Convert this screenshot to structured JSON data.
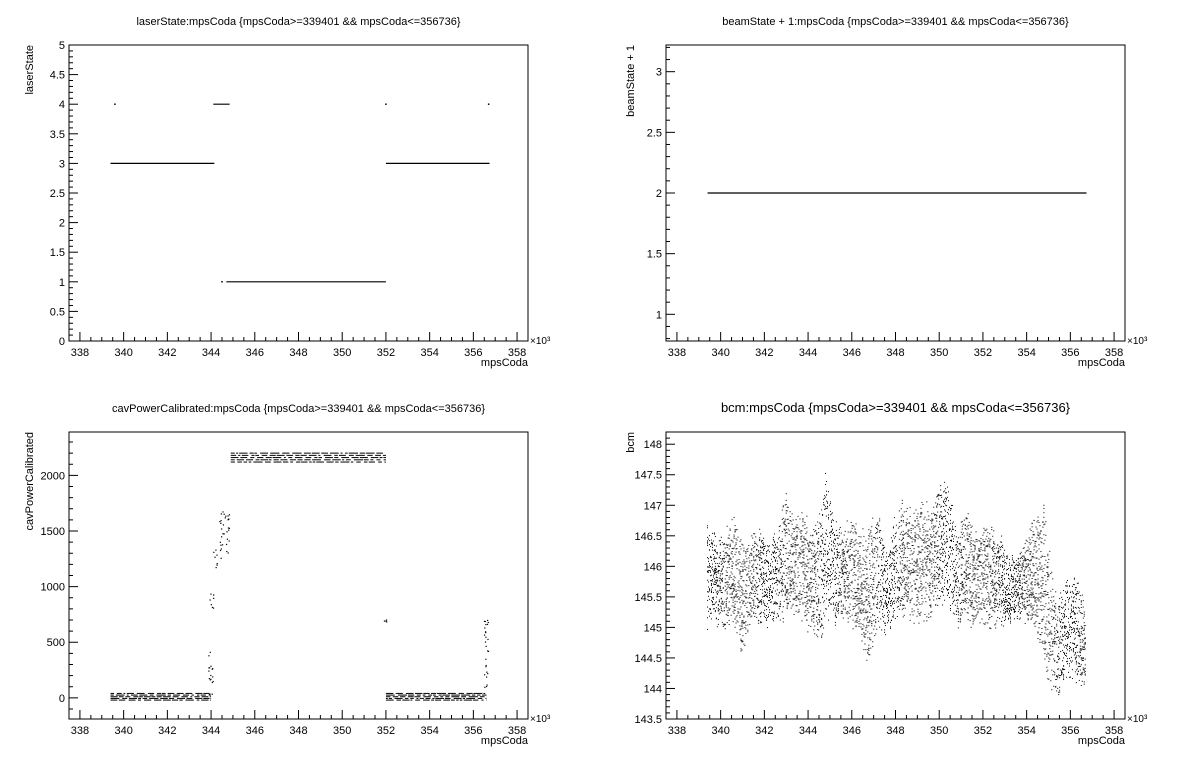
{
  "chart_data": [
    {
      "type": "scatter",
      "title": "laserState:mpsCoda {mpsCoda>=339401 && mpsCoda<=356736}",
      "xlabel": "mpsCoda",
      "ylabel": "laserState",
      "xlim": [
        337.5,
        358.5
      ],
      "ylim": [
        0,
        5
      ],
      "x_ticks": [
        "338",
        "340",
        "342",
        "344",
        "346",
        "348",
        "350",
        "352",
        "354",
        "356",
        "358"
      ],
      "y_ticks": [
        "0",
        "0.5",
        "1",
        "1.5",
        "2",
        "2.5",
        "3",
        "3.5",
        "4",
        "4.5",
        "5"
      ],
      "x_multiplier": "×10³",
      "segments": [
        {
          "x0": 339.4,
          "x1": 344.15,
          "y": 3
        },
        {
          "x0": 344.1,
          "x1": 344.85,
          "y": 4
        },
        {
          "x0": 344.7,
          "x1": 352.0,
          "y": 1
        },
        {
          "x0": 352.0,
          "x1": 356.74,
          "y": 3
        }
      ],
      "points": [
        {
          "x": 339.6,
          "y": 4
        },
        {
          "x": 344.5,
          "y": 1
        },
        {
          "x": 352.0,
          "y": 4
        },
        {
          "x": 356.7,
          "y": 4
        }
      ]
    },
    {
      "type": "scatter",
      "title": "beamState + 1:mpsCoda {mpsCoda>=339401 && mpsCoda<=356736}",
      "xlabel": "mpsCoda",
      "ylabel": "beamState + 1",
      "xlim": [
        337.5,
        358.5
      ],
      "ylim": [
        0.78,
        3.22
      ],
      "x_ticks": [
        "338",
        "340",
        "342",
        "344",
        "346",
        "348",
        "350",
        "352",
        "354",
        "356",
        "358"
      ],
      "y_ticks": [
        "1",
        "1.5",
        "2",
        "2.5",
        "3"
      ],
      "x_multiplier": "×10³",
      "segments": [
        {
          "x0": 339.4,
          "x1": 356.74,
          "y": 2
        }
      ],
      "points": []
    },
    {
      "type": "scatter",
      "title": "cavPowerCalibrated:mpsCoda {mpsCoda>=339401 && mpsCoda<=356736}",
      "xlabel": "mpsCoda",
      "ylabel": "cavPowerCalibrated",
      "xlim": [
        337.5,
        358.5
      ],
      "ylim": [
        -190,
        2390
      ],
      "x_ticks": [
        "338",
        "340",
        "342",
        "344",
        "346",
        "348",
        "350",
        "352",
        "354",
        "356",
        "358"
      ],
      "y_ticks": [
        "0",
        "500",
        "1000",
        "1500",
        "2000"
      ],
      "x_multiplier": "×10³",
      "bands": [
        {
          "x0": 339.4,
          "x1": 344.0,
          "ymin": -20,
          "ymax": 40,
          "rows": 5
        },
        {
          "x0": 344.9,
          "x1": 352.0,
          "ymin": 2120,
          "ymax": 2200,
          "rows": 5
        },
        {
          "x0": 352.0,
          "x1": 356.6,
          "ymin": -20,
          "ymax": 40,
          "rows": 5
        }
      ],
      "clusters": [
        {
          "x": 344.0,
          "ymin": 0,
          "ymax": 450
        },
        {
          "x": 344.05,
          "ymin": 780,
          "ymax": 960
        },
        {
          "x": 344.2,
          "ymin": 1150,
          "ymax": 1350
        },
        {
          "x": 344.5,
          "ymin": 1250,
          "ymax": 1700
        },
        {
          "x": 344.75,
          "ymin": 1230,
          "ymax": 1650
        },
        {
          "x": 352.0,
          "ymin": 680,
          "ymax": 700
        },
        {
          "x": 356.6,
          "ymin": 40,
          "ymax": 740
        }
      ]
    },
    {
      "type": "scatter",
      "title": "bcm:mpsCoda {mpsCoda>=339401 && mpsCoda<=356736}",
      "xlabel": "mpsCoda",
      "ylabel": "bcm",
      "xlim": [
        337.5,
        358.5
      ],
      "ylim": [
        143.5,
        148.2
      ],
      "x_ticks": [
        "338",
        "340",
        "342",
        "344",
        "346",
        "348",
        "350",
        "352",
        "354",
        "356",
        "358"
      ],
      "y_ticks": [
        "143.5",
        "144",
        "144.5",
        "145",
        "145.5",
        "146",
        "146.5",
        "147",
        "147.5",
        "148"
      ],
      "x_multiplier": "×10³",
      "envelope": {
        "x": [
          339.4,
          339.8,
          340.2,
          340.6,
          341.0,
          341.4,
          341.8,
          342.2,
          342.6,
          343.0,
          343.4,
          343.8,
          344.2,
          344.6,
          344.8,
          345.2,
          345.6,
          346.0,
          346.4,
          346.8,
          347.2,
          347.6,
          348.0,
          348.4,
          348.8,
          349.2,
          349.6,
          350.0,
          350.4,
          350.8,
          351.2,
          351.6,
          352.0,
          352.4,
          352.8,
          353.2,
          353.6,
          354.0,
          354.4,
          354.8,
          355.0,
          355.4,
          355.8,
          356.2,
          356.7
        ],
        "ymin": [
          144.9,
          145.0,
          144.9,
          145.0,
          144.4,
          145.0,
          145.0,
          144.9,
          145.0,
          145.0,
          145.1,
          145.0,
          144.8,
          144.6,
          145.0,
          145.0,
          145.1,
          144.9,
          144.8,
          144.2,
          145.0,
          144.8,
          145.0,
          145.1,
          145.0,
          145.0,
          145.1,
          145.3,
          145.2,
          145.0,
          144.9,
          144.9,
          145.0,
          144.9,
          144.9,
          145.0,
          145.1,
          145.0,
          144.9,
          144.3,
          144.0,
          143.8,
          144.0,
          144.1,
          143.9
        ],
        "ymax": [
          147.0,
          146.5,
          146.6,
          146.9,
          146.5,
          146.6,
          146.7,
          146.4,
          146.7,
          147.4,
          146.8,
          147.0,
          146.7,
          147.1,
          147.8,
          146.9,
          146.6,
          147.0,
          146.6,
          146.7,
          147.1,
          146.3,
          146.9,
          147.3,
          146.9,
          147.3,
          146.9,
          147.4,
          147.5,
          146.6,
          147.1,
          146.7,
          146.8,
          146.7,
          146.6,
          146.3,
          146.2,
          146.6,
          146.9,
          147.4,
          146.5,
          145.6,
          145.8,
          146.1,
          145.3
        ]
      }
    }
  ]
}
